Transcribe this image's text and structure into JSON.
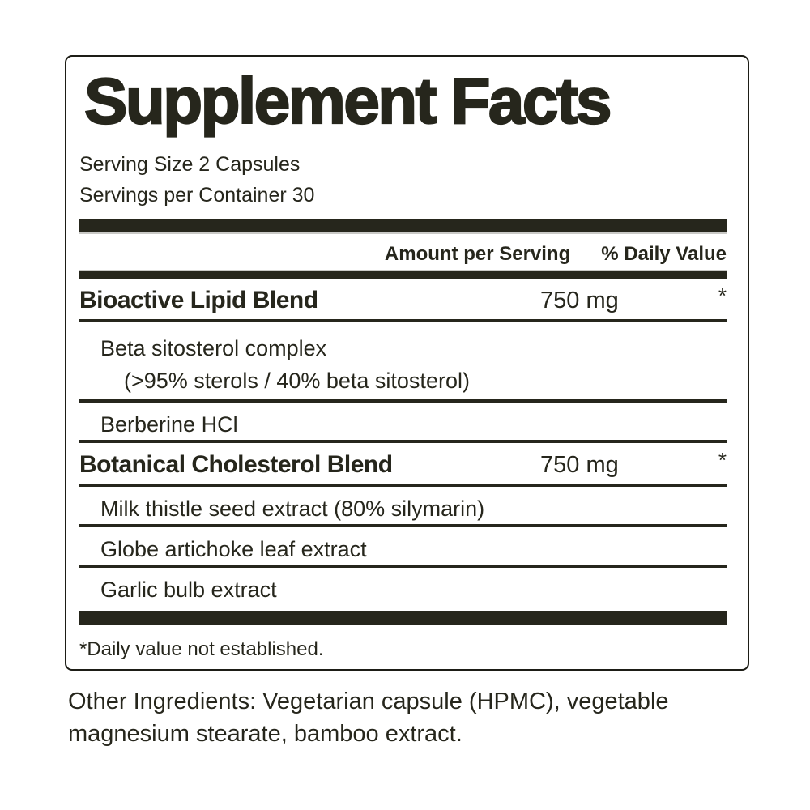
{
  "panel": {
    "title": "Supplement Facts",
    "serving_size": "Serving Size 2 Capsules",
    "servings_per_container": "Servings per Container 30",
    "column_headers": {
      "amount": "Amount per Serving",
      "daily_value": "% Daily Value"
    },
    "rows": [
      {
        "type": "blend",
        "name": "Bioactive Lipid Blend",
        "amount": "750 mg",
        "daily_value": "*"
      },
      {
        "type": "ingredient",
        "name": "Beta sitosterol complex",
        "detail": "(>95% sterols / 40% beta sitosterol)"
      },
      {
        "type": "ingredient",
        "name": "Berberine HCl"
      },
      {
        "type": "blend",
        "name": "Botanical Cholesterol Blend",
        "amount": "750 mg",
        "daily_value": "*"
      },
      {
        "type": "ingredient",
        "name": "Milk thistle seed extract (80% silymarin)"
      },
      {
        "type": "ingredient",
        "name": "Globe artichoke leaf extract"
      },
      {
        "type": "ingredient",
        "name": "Garlic bulb extract"
      }
    ],
    "footnote": "*Daily value not established."
  },
  "other_ingredients_lines": [
    "Other Ingredients: Vegetarian capsule (HPMC), vegetable",
    "magnesium stearate, bamboo extract."
  ],
  "colors": {
    "ink": "#26261c",
    "background": "#ffffff"
  }
}
